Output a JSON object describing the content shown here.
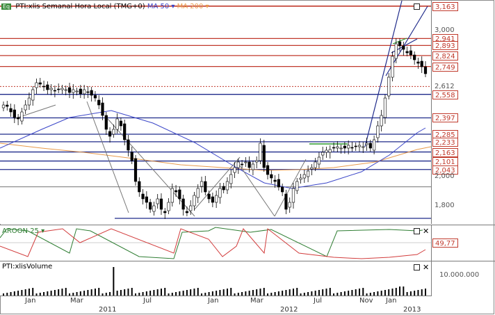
{
  "main_chart": {
    "badge": "Eq",
    "title": "PTI:xlis Semanal Hora Local (TMG+0)",
    "ma50_label": "MA 50",
    "ma200_label": "MA 200",
    "colors": {
      "ma50": "#3a45c8",
      "ma200": "#e89a4a",
      "red_line": "#c0392b",
      "blue_line": "#1f2a8a",
      "candle": "#000000"
    },
    "price_levels": [
      {
        "label": "3,163",
        "value": 3.163,
        "style": "boxed"
      },
      {
        "label": "3,000",
        "value": 3.0,
        "style": "plain"
      },
      {
        "label": "2,941",
        "value": 2.941,
        "style": "boxed"
      },
      {
        "label": "2,893",
        "value": 2.893,
        "style": "boxed"
      },
      {
        "label": "2,824",
        "value": 2.824,
        "style": "boxed"
      },
      {
        "label": "2,749",
        "value": 2.749,
        "style": "boxed"
      },
      {
        "label": "2,612",
        "value": 2.612,
        "style": "plain"
      },
      {
        "label": "2,558",
        "value": 2.558,
        "style": "boxed"
      },
      {
        "label": "2,397",
        "value": 2.397,
        "style": "boxed"
      },
      {
        "label": "2,285",
        "value": 2.285,
        "style": "boxed"
      },
      {
        "label": "2,233",
        "value": 2.233,
        "style": "boxed"
      },
      {
        "label": "2,163",
        "value": 2.163,
        "style": "boxed"
      },
      {
        "label": "2,101",
        "value": 2.101,
        "style": "boxed"
      },
      {
        "label": "2,043",
        "value": 2.043,
        "style": "boxed"
      },
      {
        "label": "2,000",
        "value": 2.0,
        "style": "plain"
      },
      {
        "label": "1,800",
        "value": 1.8,
        "style": "plain"
      }
    ]
  },
  "aroon": {
    "title": "AROON 25",
    "value_label": "49,77"
  },
  "volume": {
    "title": "PTI:xlisVolume",
    "scale_label": "10.000.000"
  },
  "x_axis": {
    "months": [
      {
        "label": "Jan",
        "x": 45
      },
      {
        "label": "Mar",
        "x": 110
      },
      {
        "label": "Jul",
        "x": 215
      },
      {
        "label": "Jan",
        "x": 308
      },
      {
        "label": "Mar",
        "x": 369
      },
      {
        "label": "Jul",
        "x": 460
      },
      {
        "label": "Nov",
        "x": 526
      },
      {
        "label": "Jan",
        "x": 564
      }
    ],
    "years": [
      {
        "label": "2011",
        "x": 154
      },
      {
        "label": "2012",
        "x": 415
      },
      {
        "label": "2013",
        "x": 592
      }
    ]
  }
}
